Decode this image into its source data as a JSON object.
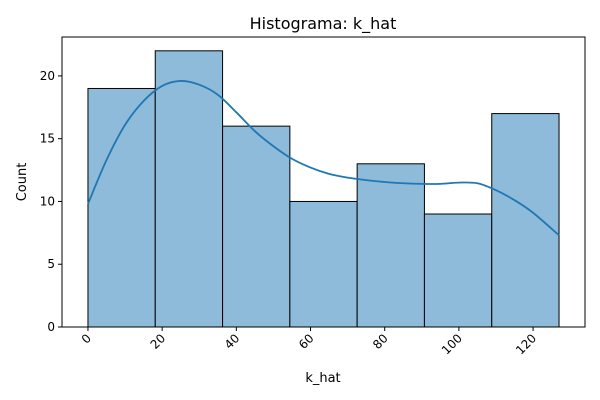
{
  "chart_data": {
    "type": "bar",
    "title": "Histograma: k_hat",
    "xlabel": "k_hat",
    "ylabel": "Count",
    "xlim": [
      -7,
      134
    ],
    "ylim": [
      0,
      23.1
    ],
    "x_ticks": [
      0,
      20,
      40,
      60,
      80,
      100,
      120
    ],
    "y_ticks": [
      0,
      5,
      10,
      15,
      20
    ],
    "bins": [
      {
        "start": 0,
        "end": 18.14,
        "count": 19
      },
      {
        "start": 18.14,
        "end": 36.29,
        "count": 22
      },
      {
        "start": 36.29,
        "end": 54.43,
        "count": 16
      },
      {
        "start": 54.43,
        "end": 72.57,
        "count": 10
      },
      {
        "start": 72.57,
        "end": 90.71,
        "count": 13
      },
      {
        "start": 90.71,
        "end": 108.86,
        "count": 9
      },
      {
        "start": 108.86,
        "end": 127,
        "count": 17
      }
    ],
    "kde": {
      "name": "",
      "x": [
        0,
        5,
        10,
        15,
        20,
        25,
        30,
        35,
        40,
        45,
        50,
        55,
        60,
        65,
        70,
        75,
        80,
        85,
        90,
        95,
        100,
        105,
        110,
        115,
        120,
        127
      ],
      "y": [
        9.8,
        13.3,
        16.1,
        18.0,
        19.2,
        19.6,
        19.3,
        18.5,
        17.1,
        15.6,
        14.4,
        13.4,
        12.7,
        12.2,
        11.9,
        11.7,
        11.55,
        11.45,
        11.4,
        11.4,
        11.5,
        11.45,
        10.9,
        10.1,
        9.1,
        7.3
      ]
    },
    "bar_color": "#8dbbd9",
    "bar_edge_color": "#000000",
    "kde_color": "#1f77b4",
    "grid": false,
    "legend": "none",
    "x_tick_rotation_deg": 45
  }
}
